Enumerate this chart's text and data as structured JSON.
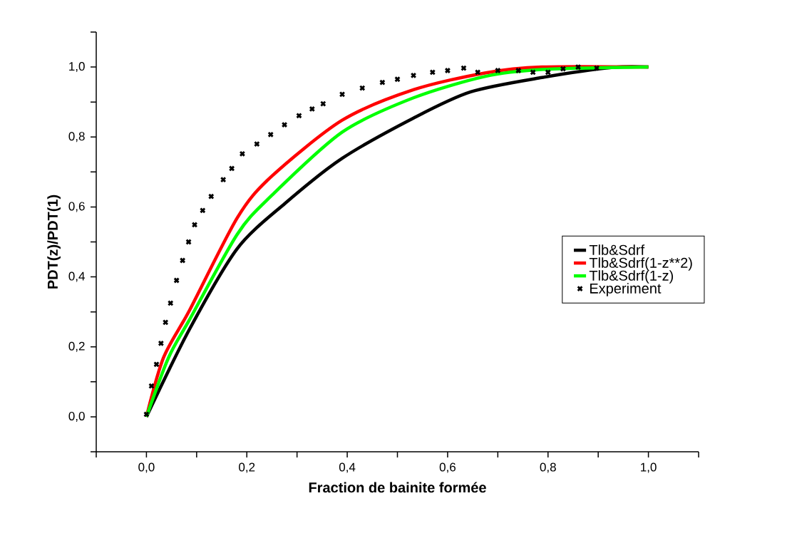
{
  "chart_data": {
    "type": "line",
    "xlabel": "Fraction de bainite formée",
    "ylabel": "PDT(z)/PDT(1)",
    "xlim": [
      -0.1,
      1.1
    ],
    "ylim": [
      -0.1,
      1.1
    ],
    "xticks": [
      {
        "value": -0.1,
        "label": null
      },
      {
        "value": 0.0,
        "label": "0,0"
      },
      {
        "value": 0.1,
        "label": null
      },
      {
        "value": 0.2,
        "label": "0,2"
      },
      {
        "value": 0.3,
        "label": null
      },
      {
        "value": 0.4,
        "label": "0,4"
      },
      {
        "value": 0.5,
        "label": null
      },
      {
        "value": 0.6,
        "label": "0,6"
      },
      {
        "value": 0.7,
        "label": null
      },
      {
        "value": 0.8,
        "label": "0,8"
      },
      {
        "value": 0.9,
        "label": null
      },
      {
        "value": 1.0,
        "label": "1,0"
      },
      {
        "value": 1.1,
        "label": null
      }
    ],
    "yticks": [
      {
        "value": -0.1,
        "label": null
      },
      {
        "value": 0.0,
        "label": "0,0"
      },
      {
        "value": 0.1,
        "label": null
      },
      {
        "value": 0.2,
        "label": "0,2"
      },
      {
        "value": 0.3,
        "label": null
      },
      {
        "value": 0.4,
        "label": "0,4"
      },
      {
        "value": 0.5,
        "label": null
      },
      {
        "value": 0.6,
        "label": "0,6"
      },
      {
        "value": 0.7,
        "label": null
      },
      {
        "value": 0.8,
        "label": "0,8"
      },
      {
        "value": 0.9,
        "label": null
      },
      {
        "value": 1.0,
        "label": "1,0"
      },
      {
        "value": 1.1,
        "label": null
      }
    ],
    "legend": "right",
    "grid": false,
    "series": [
      {
        "name": "Tlb&Sdrf",
        "color": "#000000",
        "x": [
          0.0,
          0.086,
          0.181,
          0.276,
          0.39,
          0.532,
          0.646,
          0.788,
          0.93,
          1.0
        ],
        "values": [
          0.0,
          0.251,
          0.481,
          0.61,
          0.739,
          0.854,
          0.929,
          0.97,
          0.999,
          1.0
        ]
      },
      {
        "name": "Tlb&Sdrf(1-z**2)",
        "color": "#ff0000",
        "x": [
          0.0,
          0.034,
          0.086,
          0.181,
          0.2475,
          0.39,
          0.532,
          0.674,
          0.788,
          1.0
        ],
        "values": [
          0.0,
          0.169,
          0.305,
          0.569,
          0.685,
          0.848,
          0.935,
          0.983,
          1.0,
          1.0
        ]
      },
      {
        "name": "Tlb&Sdrf(1-z)",
        "color": "#00ff00",
        "x": [
          0.0,
          0.044,
          0.086,
          0.181,
          0.2475,
          0.39,
          0.532,
          0.674,
          0.788,
          1.0
        ],
        "values": [
          0.0,
          0.169,
          0.278,
          0.522,
          0.63,
          0.814,
          0.912,
          0.973,
          0.993,
          1.0
        ]
      },
      {
        "name": "Experiment",
        "type": "scatter",
        "marker": "cross",
        "color": "#000000",
        "x": [
          0.0,
          0.01,
          0.02,
          0.029,
          0.038,
          0.048,
          0.06,
          0.072,
          0.084,
          0.096,
          0.112,
          0.129,
          0.153,
          0.17,
          0.191,
          0.22,
          0.2475,
          0.275,
          0.304,
          0.33,
          0.352,
          0.39,
          0.43,
          0.47,
          0.5,
          0.532,
          0.57,
          0.6,
          0.632,
          0.66,
          0.7,
          0.741,
          0.77,
          0.8,
          0.83,
          0.86,
          0.897
        ],
        "values": [
          0.007,
          0.088,
          0.15,
          0.21,
          0.27,
          0.325,
          0.39,
          0.447,
          0.5,
          0.549,
          0.59,
          0.63,
          0.678,
          0.71,
          0.752,
          0.78,
          0.807,
          0.835,
          0.861,
          0.88,
          0.895,
          0.922,
          0.94,
          0.956,
          0.965,
          0.976,
          0.985,
          0.99,
          0.997,
          0.985,
          0.99,
          0.99,
          0.985,
          0.985,
          0.995,
          1.0,
          0.997
        ]
      }
    ]
  }
}
